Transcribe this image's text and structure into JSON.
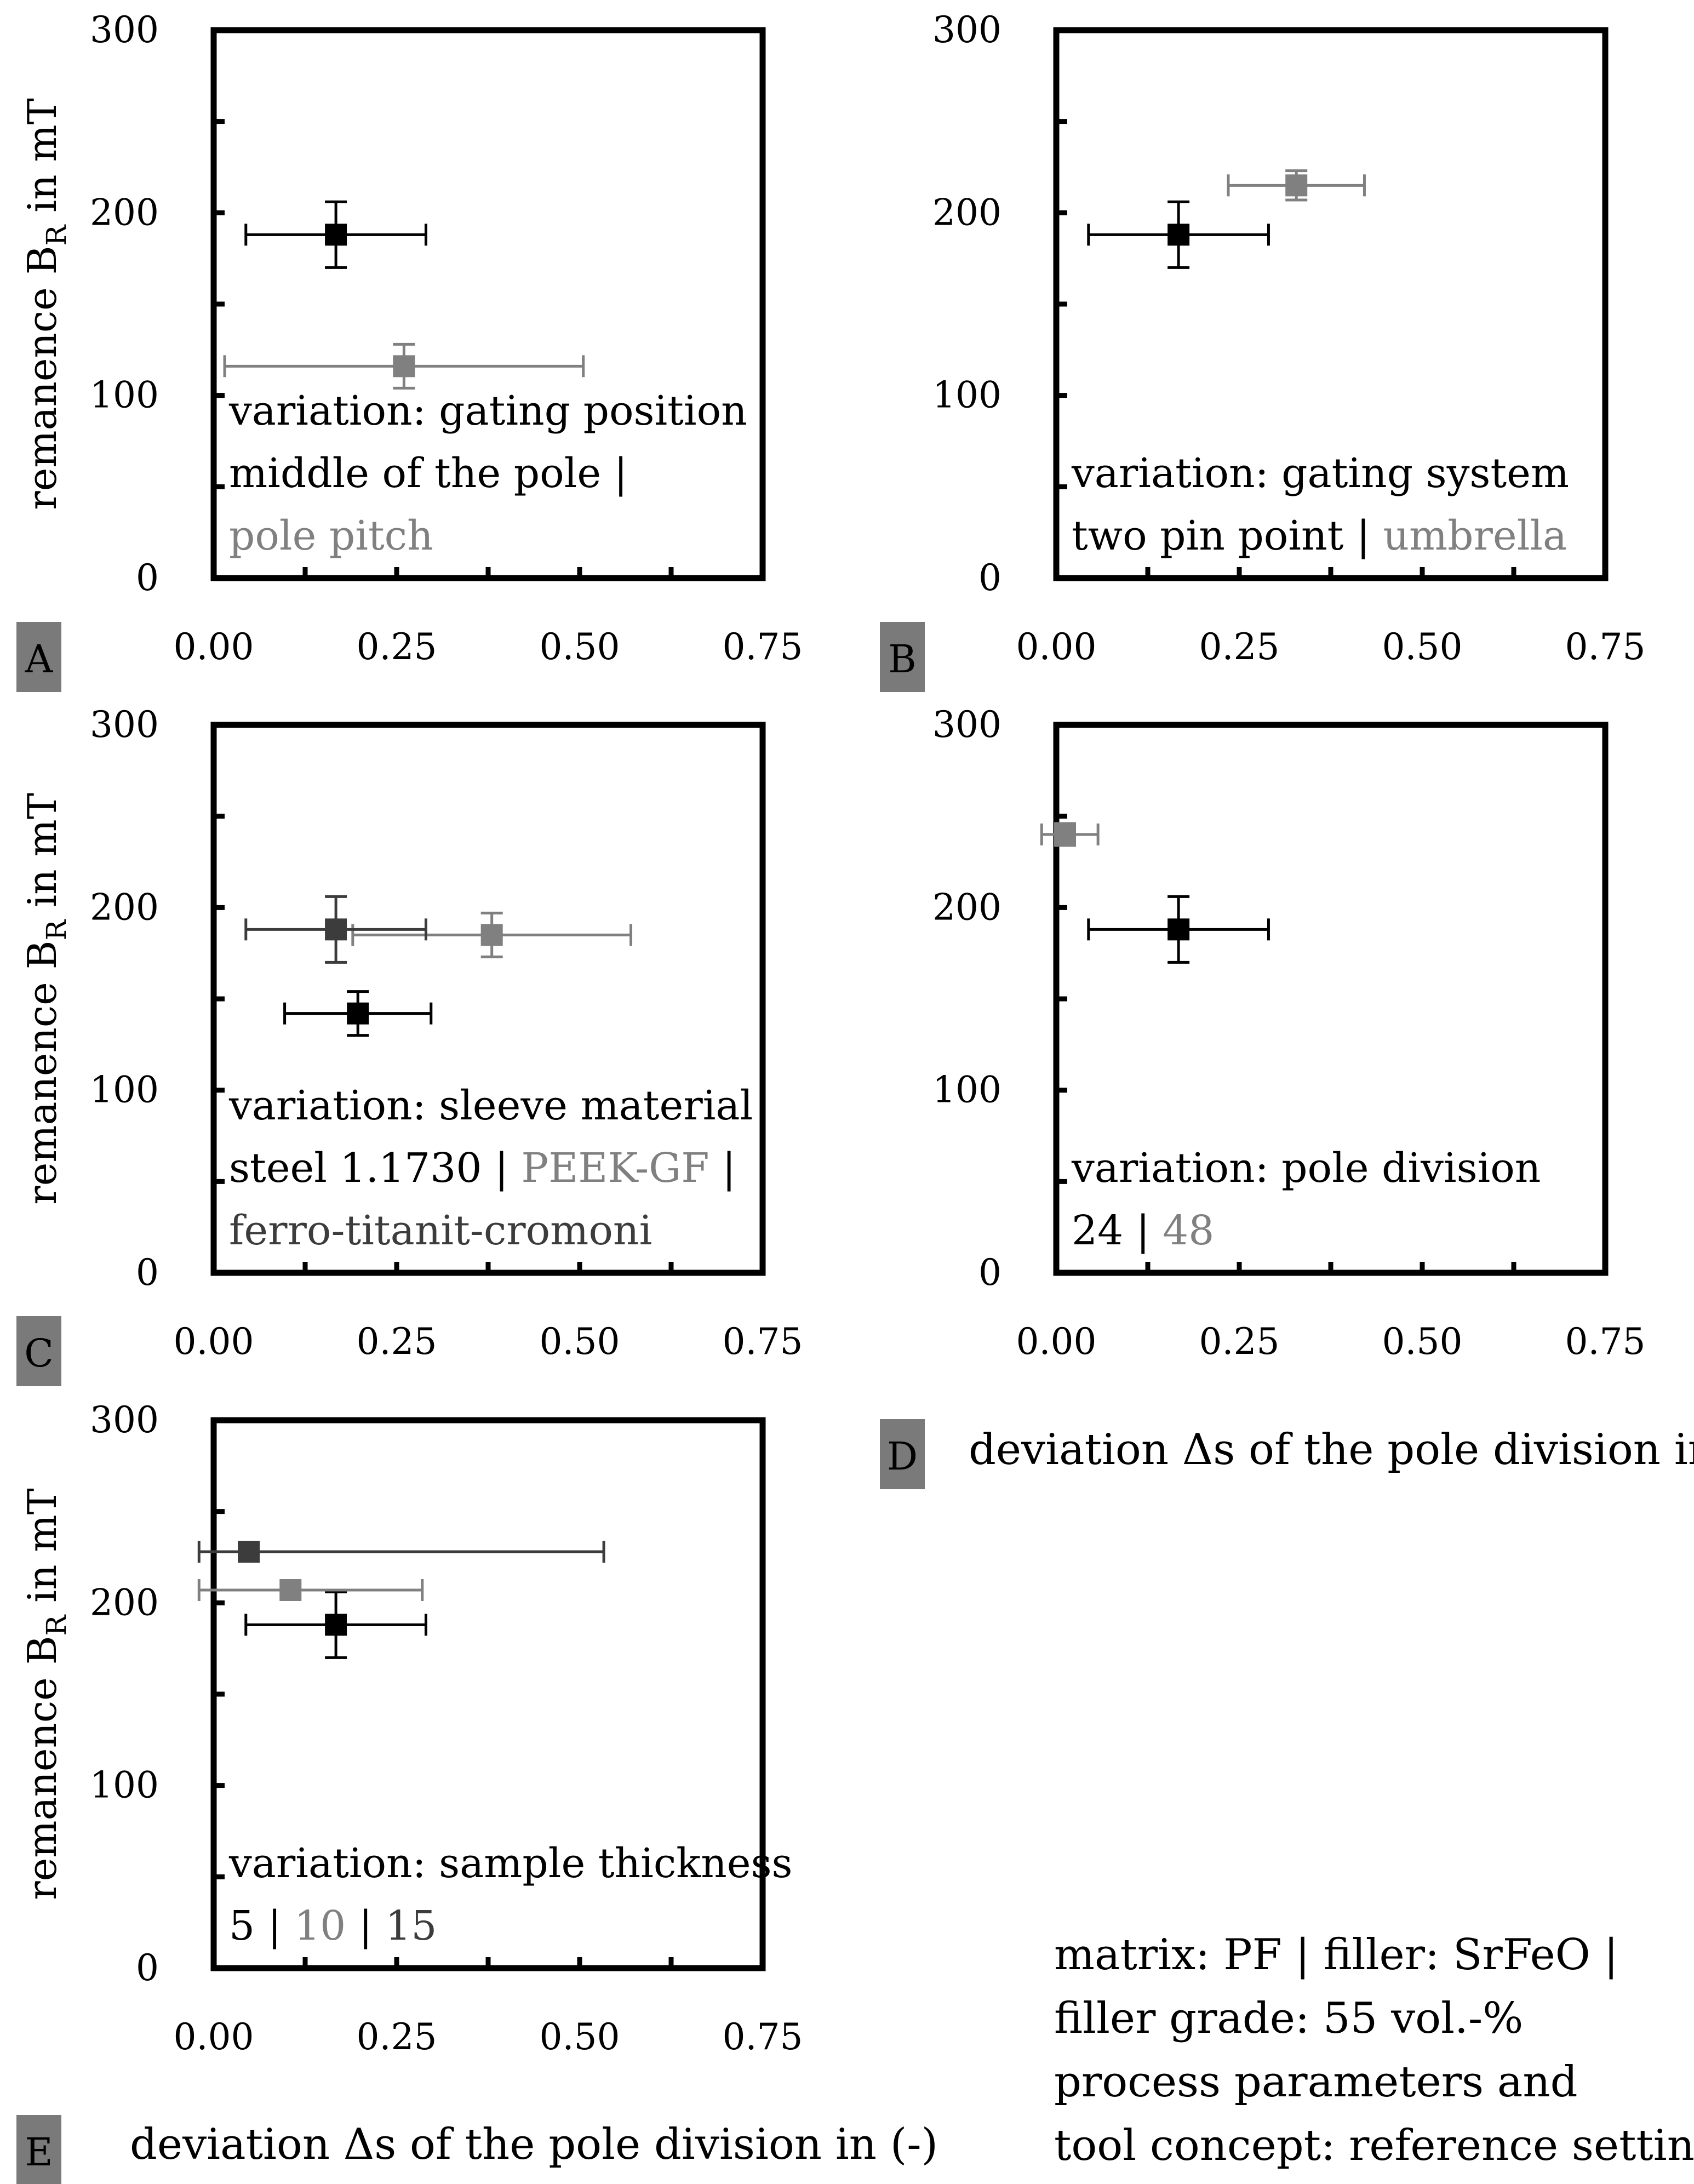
{
  "colors": {
    "black": "#000000",
    "gray": "#808080",
    "dark_gray": "#3c3c3c",
    "tag_bg": "#7a7a7a",
    "tag_text": "#000000"
  },
  "chart_data": [
    {
      "type": "scatter",
      "panel": "A",
      "ylabel": "remanence B_R in mT",
      "ylabel_main": "remanence B",
      "ylabel_sub": "R",
      "ylabel_suffix": " in mT",
      "xlim": [
        0,
        0.75
      ],
      "ylim": [
        0,
        300
      ],
      "x_ticks": [
        "0.00",
        "0.25",
        "0.50",
        "0.75"
      ],
      "y_ticks": [
        "0",
        "100",
        "200",
        "300"
      ],
      "annotation_lines": [
        [
          {
            "text": "variation: gating position",
            "color": "black"
          }
        ],
        [
          {
            "text": "middle of the pole",
            "color": "black"
          },
          {
            "text": " | ",
            "color": "black"
          }
        ],
        [
          {
            "text": "pole pitch",
            "color": "gray"
          }
        ]
      ],
      "series": [
        {
          "name": "middle of the pole",
          "color": "black",
          "x": 0.167,
          "y": 188,
          "xerr": 0.123,
          "yerr": 18
        },
        {
          "name": "pole pitch",
          "color": "gray",
          "x": 0.26,
          "y": 116,
          "xerr": 0.245,
          "yerr": 12
        }
      ]
    },
    {
      "type": "scatter",
      "panel": "B",
      "xlim": [
        0,
        0.75
      ],
      "ylim": [
        0,
        300
      ],
      "x_ticks": [
        "0.00",
        "0.25",
        "0.50",
        "0.75"
      ],
      "y_ticks": [
        "0",
        "100",
        "200",
        "300"
      ],
      "annotation_lines": [
        [
          {
            "text": "variation: gating system",
            "color": "black"
          }
        ],
        [
          {
            "text": "two pin point",
            "color": "black"
          },
          {
            "text": " | ",
            "color": "black"
          },
          {
            "text": "umbrella",
            "color": "gray"
          }
        ]
      ],
      "series": [
        {
          "name": "two pin point",
          "color": "black",
          "x": 0.167,
          "y": 188,
          "xerr": 0.123,
          "yerr": 18
        },
        {
          "name": "umbrella",
          "color": "gray",
          "x": 0.328,
          "y": 215,
          "xerr": 0.093,
          "yerr": 8
        }
      ]
    },
    {
      "type": "scatter",
      "panel": "C",
      "ylabel_main": "remanence B",
      "ylabel_sub": "R",
      "ylabel_suffix": " in mT",
      "xlim": [
        0,
        0.75
      ],
      "ylim": [
        0,
        300
      ],
      "x_ticks": [
        "0.00",
        "0.25",
        "0.50",
        "0.75"
      ],
      "y_ticks": [
        "0",
        "100",
        "200",
        "300"
      ],
      "annotation_lines": [
        [
          {
            "text": "variation: sleeve material",
            "color": "black"
          }
        ],
        [
          {
            "text": "steel 1.1730",
            "color": "black"
          },
          {
            "text": " | ",
            "color": "black"
          },
          {
            "text": "PEEK-GF",
            "color": "gray"
          },
          {
            "text": " | ",
            "color": "black"
          }
        ],
        [
          {
            "text": "ferro-titanit-cromoni",
            "color": "dark_gray"
          }
        ]
      ],
      "series": [
        {
          "name": "steel 1.1730",
          "color": "black",
          "x": 0.197,
          "y": 142,
          "xerr": 0.1,
          "yerr": 12
        },
        {
          "name": "PEEK-GF",
          "color": "gray",
          "x": 0.38,
          "y": 185,
          "xerr": 0.19,
          "yerr": 12
        },
        {
          "name": "ferro-titanit-cromoni",
          "color": "dark_gray",
          "x": 0.167,
          "y": 188,
          "xerr": 0.123,
          "yerr": 18
        }
      ]
    },
    {
      "type": "scatter",
      "panel": "D",
      "xlabel": "deviation Δs of the pole division in (-)",
      "xlim": [
        0,
        0.75
      ],
      "ylim": [
        0,
        300
      ],
      "x_ticks": [
        "0.00",
        "0.25",
        "0.50",
        "0.75"
      ],
      "y_ticks": [
        "0",
        "100",
        "200",
        "300"
      ],
      "annotation_lines": [
        [
          {
            "text": "variation: pole division",
            "color": "black"
          }
        ],
        [
          {
            "text": "24",
            "color": "black"
          },
          {
            "text": " | ",
            "color": "black"
          },
          {
            "text": "48",
            "color": "gray"
          }
        ]
      ],
      "series": [
        {
          "name": "24",
          "color": "black",
          "x": 0.167,
          "y": 188,
          "xerr": 0.123,
          "yerr": 18
        },
        {
          "name": "48",
          "color": "gray",
          "x": 0.012,
          "y": 240,
          "xerr": 0.045,
          "yerr": 6
        }
      ]
    },
    {
      "type": "scatter",
      "panel": "E",
      "ylabel_main": "remanence B",
      "ylabel_sub": "R",
      "ylabel_suffix": " in mT",
      "xlabel": "deviation Δs of the pole division in (-)",
      "xlim": [
        0,
        0.75
      ],
      "ylim": [
        0,
        300
      ],
      "x_ticks": [
        "0.00",
        "0.25",
        "0.50",
        "0.75"
      ],
      "y_ticks": [
        "0",
        "100",
        "200",
        "300"
      ],
      "annotation_lines": [
        [
          {
            "text": "variation: sample thickness",
            "color": "black"
          }
        ],
        [
          {
            "text": "5",
            "color": "black"
          },
          {
            "text": " | ",
            "color": "black"
          },
          {
            "text": "10",
            "color": "gray"
          },
          {
            "text": " | ",
            "color": "black"
          },
          {
            "text": "15",
            "color": "dark_gray"
          }
        ]
      ],
      "series": [
        {
          "name": "5",
          "color": "black",
          "x": 0.167,
          "y": 188,
          "xerr": 0.123,
          "yerr": 18
        },
        {
          "name": "10",
          "color": "gray",
          "x": 0.105,
          "y": 207,
          "xerr": 0.18,
          "yerr": 0
        },
        {
          "name": "15",
          "color": "dark_gray",
          "x": 0.048,
          "y": 228,
          "xerr": 0.485,
          "yerr": 0
        }
      ]
    }
  ],
  "notes": {
    "lines": [
      [
        {
          "text": "matrix: PF",
          "color": "black"
        },
        {
          "text": " | ",
          "color": "black"
        },
        {
          "text": "filler: SrFeO",
          "color": "black"
        },
        {
          "text": " | ",
          "color": "black"
        }
      ],
      [
        {
          "text": "filler grade: 55 vol.-%",
          "color": "black"
        }
      ],
      [
        {
          "text": "process parameters and",
          "color": "black"
        }
      ],
      [
        {
          "text": "tool concept: reference setting",
          "color": "black"
        }
      ]
    ]
  }
}
